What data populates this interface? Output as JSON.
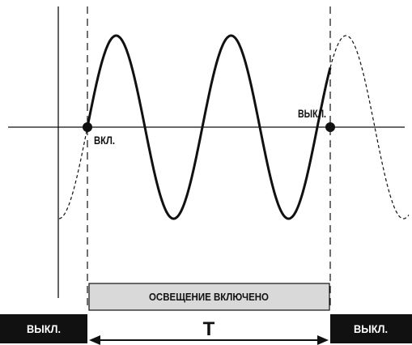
{
  "labels": {
    "on_point": "ВКЛ.",
    "off_point": "ВЫКЛ.",
    "off_left_box": "ВЫКЛ.",
    "off_right_box": "ВЫКЛ.",
    "light_on_bar": "ОСВЕЩЕНИЕ ВКЛЮЧЕНО",
    "period": "Т"
  },
  "colors": {
    "line": "#111111",
    "box_dark": "#111111",
    "bar_fill": "#d9d9d9"
  }
}
